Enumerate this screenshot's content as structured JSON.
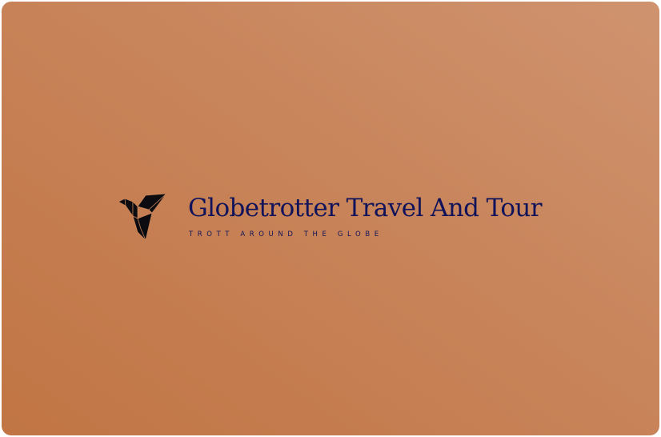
{
  "brand": {
    "title": "Globetrotter Travel And Tour",
    "tagline": "TROTT AROUND THE GLOBE",
    "logo_icon": "origami-bird-icon",
    "text_color": "#10135a",
    "logo_color": "#0b0b10"
  },
  "background": {
    "gradient_start": "#c17544",
    "gradient_end": "#cf936f"
  }
}
